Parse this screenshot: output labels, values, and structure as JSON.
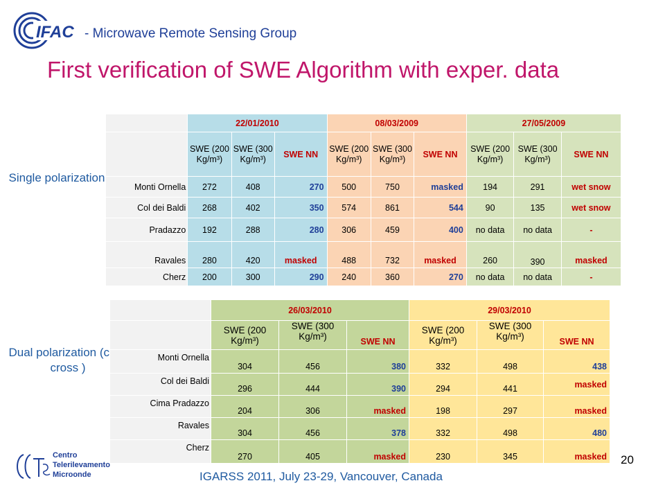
{
  "header": {
    "logo_text": "IFAC",
    "group": "-  Microwave Remote Sensing Group"
  },
  "title": "First verification of SWE Algorithm with exper. data",
  "single": {
    "label": "Single polarization",
    "dates": [
      "22/01/2010",
      "08/03/2009",
      "27/05/2009"
    ],
    "subheaders": [
      "SWE (200 Kg/m³)",
      "SWE (300 Kg/m³)",
      "SWE NN"
    ],
    "rows": [
      {
        "site": "Monti Ornella",
        "values": [
          "272",
          "408",
          "270",
          "500",
          "750",
          "masked",
          "194",
          "291",
          "wet snow"
        ]
      },
      {
        "site": "Col dei Baldi",
        "values": [
          "268",
          "402",
          "350",
          "574",
          "861",
          "544",
          "90",
          "135",
          "wet snow"
        ]
      },
      {
        "site": "Pradazzo",
        "values": [
          "192",
          "288",
          "280",
          "306",
          "459",
          "400",
          "no data",
          "no data",
          "-"
        ]
      },
      {
        "site": "Ravales",
        "values": [
          "280",
          "420",
          "masked",
          "488",
          "732",
          "masked",
          "260",
          "390",
          "masked"
        ]
      },
      {
        "site": "Cherz",
        "values": [
          "200",
          "300",
          "290",
          "240",
          "360",
          "270",
          "no data",
          "no data",
          "-"
        ]
      }
    ]
  },
  "dual": {
    "label": "Dual polarization (co & cross )",
    "dates": [
      "26/03/2010",
      "29/03/2010"
    ],
    "subheaders": [
      "SWE (200 Kg/m³)",
      "SWE (300 Kg/m³)",
      "SWE NN"
    ],
    "rows": [
      {
        "site": "Monti Ornella",
        "values": [
          "304",
          "456",
          "380",
          "332",
          "498",
          "438"
        ]
      },
      {
        "site": "Col dei Baldi",
        "values": [
          "296",
          "444",
          "390",
          "294",
          "441",
          "masked"
        ]
      },
      {
        "site": "Cima Pradazzo",
        "values": [
          "204",
          "306",
          "masked",
          "198",
          "297",
          "masked"
        ]
      },
      {
        "site": "Ravales",
        "values": [
          "304",
          "456",
          "378",
          "332",
          "498",
          "480"
        ]
      },
      {
        "site": "Cherz",
        "values": [
          "270",
          "405",
          "masked",
          "230",
          "345",
          "masked"
        ]
      }
    ]
  },
  "footer": {
    "center_lines": [
      "Centro",
      "Telerilevamento",
      "Microonde"
    ],
    "conference": "IGARSS 2011, July 23-29, Vancouver, Canada",
    "page": "20"
  }
}
